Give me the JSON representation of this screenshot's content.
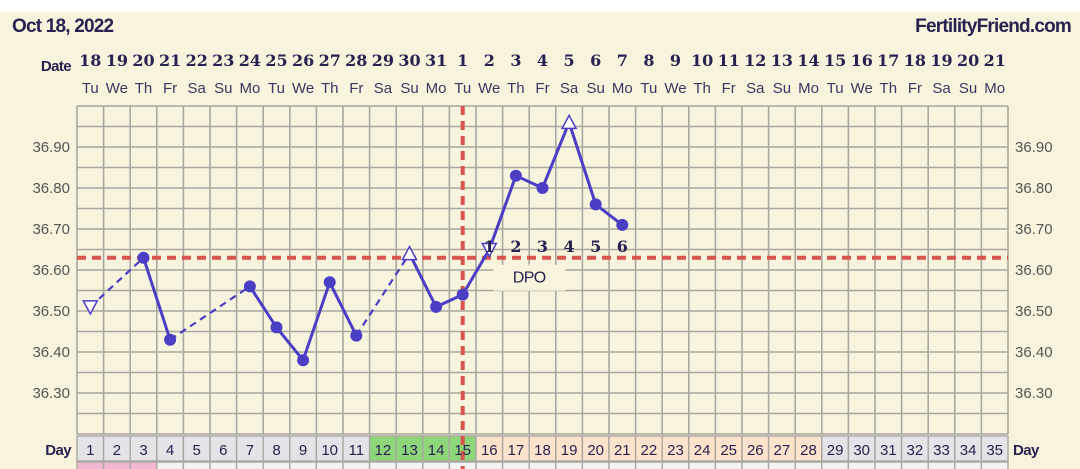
{
  "header": {
    "date": "Oct 18, 2022",
    "brand": "FertilityFriend.com",
    "date_label": "Date",
    "day_label": "Day",
    "dpo_label": "DPO"
  },
  "chart_data": {
    "type": "line",
    "ylim": [
      36.2,
      37.0
    ],
    "yticks": [
      "36.90",
      "36.80",
      "36.70",
      "36.60",
      "36.50",
      "36.40",
      "36.30"
    ],
    "grid": true,
    "dates": [
      "18",
      "19",
      "20",
      "21",
      "22",
      "23",
      "24",
      "25",
      "26",
      "27",
      "28",
      "29",
      "30",
      "31",
      "1",
      "2",
      "3",
      "4",
      "5",
      "6",
      "7",
      "8",
      "9",
      "10",
      "11",
      "12",
      "13",
      "14",
      "15",
      "16",
      "17",
      "18",
      "19",
      "20",
      "21"
    ],
    "weekdays": [
      "Tu",
      "We",
      "Th",
      "Fr",
      "Sa",
      "Su",
      "Mo",
      "Tu",
      "We",
      "Th",
      "Fr",
      "Sa",
      "Su",
      "Mo",
      "Tu",
      "We",
      "Th",
      "Fr",
      "Sa",
      "Su",
      "Mo",
      "Tu",
      "We",
      "Th",
      "Fr",
      "Sa",
      "Su",
      "Mo",
      "Tu",
      "We",
      "Th",
      "Fr",
      "Sa",
      "Su",
      "Mo"
    ],
    "days": [
      "1",
      "2",
      "3",
      "4",
      "5",
      "6",
      "7",
      "8",
      "9",
      "10",
      "11",
      "12",
      "13",
      "14",
      "15",
      "16",
      "17",
      "18",
      "19",
      "20",
      "21",
      "22",
      "23",
      "24",
      "25",
      "26",
      "27",
      "28",
      "29",
      "30",
      "31",
      "32",
      "33",
      "34",
      "35"
    ],
    "day_colors": {
      "default": "#e3e3e8",
      "fertile": "#8ed67a",
      "luteal": "#fde2cc"
    },
    "fertile_days": [
      12,
      15
    ],
    "luteal_days": [
      16,
      28
    ],
    "period_days": [
      1,
      3
    ],
    "period_color": "#f0b8d0",
    "series": [
      {
        "color": "#4a3fc4",
        "points": [
          {
            "day": 1,
            "temp": 36.51,
            "marker": "open-down"
          },
          {
            "day": 3,
            "temp": 36.63,
            "marker": "dot"
          },
          {
            "day": 4,
            "temp": 36.43,
            "marker": "dot"
          },
          {
            "day": 7,
            "temp": 36.56,
            "marker": "dot"
          },
          {
            "day": 8,
            "temp": 36.46,
            "marker": "dot"
          },
          {
            "day": 9,
            "temp": 36.38,
            "marker": "dot"
          },
          {
            "day": 10,
            "temp": 36.57,
            "marker": "dot"
          },
          {
            "day": 11,
            "temp": 36.44,
            "marker": "dot"
          },
          {
            "day": 13,
            "temp": 36.64,
            "marker": "open-up"
          },
          {
            "day": 14,
            "temp": 36.51,
            "marker": "dot"
          },
          {
            "day": 15,
            "temp": 36.54,
            "marker": "dot"
          },
          {
            "day": 16,
            "temp": 36.65,
            "marker": "open-down"
          },
          {
            "day": 17,
            "temp": 36.83,
            "marker": "dot"
          },
          {
            "day": 18,
            "temp": 36.8,
            "marker": "dot"
          },
          {
            "day": 19,
            "temp": 36.96,
            "marker": "open-up"
          },
          {
            "day": 20,
            "temp": 36.76,
            "marker": "dot"
          },
          {
            "day": 21,
            "temp": 36.71,
            "marker": "dot"
          }
        ]
      }
    ],
    "coverline": 36.63,
    "ovulation_day": 15,
    "coverline_color": "#d9534f",
    "dpo": [
      {
        "day": 16,
        "label": "1"
      },
      {
        "day": 17,
        "label": "2"
      },
      {
        "day": 18,
        "label": "3"
      },
      {
        "day": 19,
        "label": "4"
      },
      {
        "day": 20,
        "label": "5"
      },
      {
        "day": 21,
        "label": "6"
      }
    ]
  }
}
